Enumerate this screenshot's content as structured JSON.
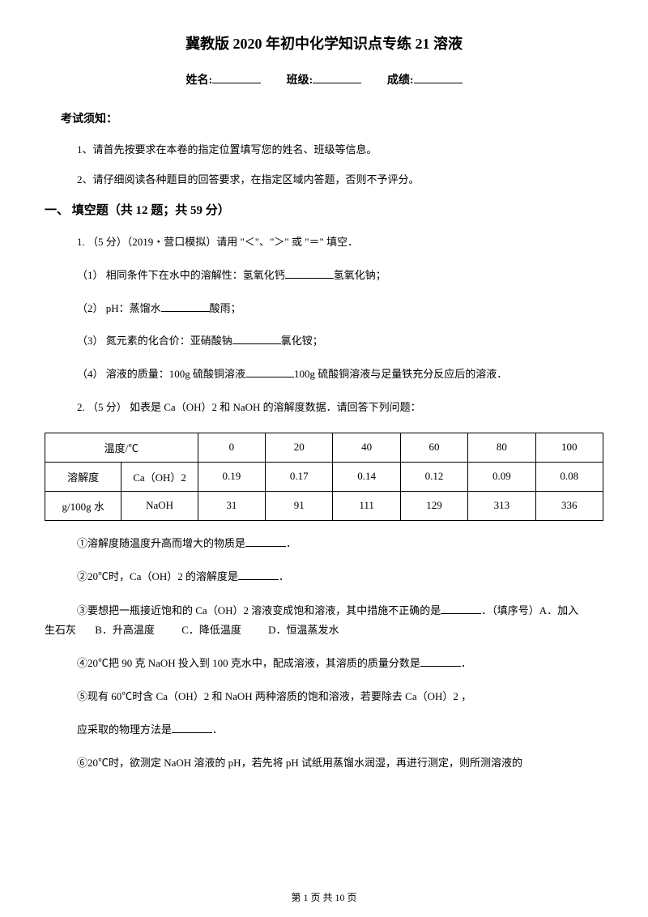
{
  "title": "冀教版 2020 年初中化学知识点专练 21 溶液",
  "info": {
    "name_label": "姓名:",
    "class_label": "班级:",
    "score_label": "成绩:"
  },
  "exam_notice_header": "考试须知：",
  "instructions": [
    "1、请首先按要求在本卷的指定位置填写您的姓名、班级等信息。",
    "2、请仔细阅读各种题目的回答要求，在指定区域内答题，否则不予评分。"
  ],
  "section1_title": "一、 填空题（共 12 题；共 59 分）",
  "q1": {
    "stem": "1. （5 分）（2019・营口模拟）请用 \"＜\"、\"＞\" 或 \"＝\" 填空．",
    "sub1_prefix": "（1） 相同条件下在水中的溶解性：氢氧化钙",
    "sub1_suffix": "氢氧化钠；",
    "sub2_prefix": "（2） pH：蒸馏水",
    "sub2_suffix": "酸雨；",
    "sub3_prefix": "（3） 氮元素的化合价：亚硝酸钠",
    "sub3_suffix": "氯化铵；",
    "sub4_prefix": "（4） 溶液的质量：100g 硫酸铜溶液",
    "sub4_suffix": "100g 硫酸铜溶液与足量铁充分反应后的溶液．"
  },
  "q2": {
    "stem": "2. （5 分） 如表是 Ca（OH）2 和 NaOH 的溶解度数据．请回答下列问题：",
    "table": {
      "header_temp": "温度/℃",
      "header_sol": "溶解度",
      "header_unit": "g/100g 水",
      "row1_label": "Ca（OH）2",
      "row2_label": "NaOH",
      "temps": [
        "0",
        "20",
        "40",
        "60",
        "80",
        "100"
      ],
      "caoh2": [
        "0.19",
        "0.17",
        "0.14",
        "0.12",
        "0.09",
        "0.08"
      ],
      "naoh": [
        "31",
        "91",
        "111",
        "129",
        "313",
        "336"
      ]
    },
    "sub1": "①溶解度随温度升高而增大的物质是",
    "sub1_suffix": "．",
    "sub2": "②20℃时，Ca（OH）2 的溶解度是",
    "sub2_suffix": "．",
    "sub3_line1": "③要想把一瓶接近饱和的 Ca（OH）2 溶液变成饱和溶液，其中措施不正确的是",
    "sub3_suffix": "．（填序号）A．加入",
    "sub3_line2_prefix": "生石灰",
    "sub3_optB": "B．升高温度",
    "sub3_optC": "C．降低温度",
    "sub3_optD": "D．恒温蒸发水",
    "sub4": "④20℃把 90 克 NaOH 投入到 100 克水中，配成溶液，其溶质的质量分数是",
    "sub4_suffix": "．",
    "sub5": "⑤现有 60℃时含 Ca（OH）2 和 NaOH 两种溶质的饱和溶液，若要除去 Ca（OH）2 ，",
    "sub5b": "应采取的物理方法是",
    "sub5b_suffix": "．",
    "sub6": "⑥20℃时，欲测定 NaOH 溶液的 pH，若先将 pH 试纸用蒸馏水润湿，再进行测定，则所测溶液的"
  },
  "footer": "第 1 页 共 10 页"
}
